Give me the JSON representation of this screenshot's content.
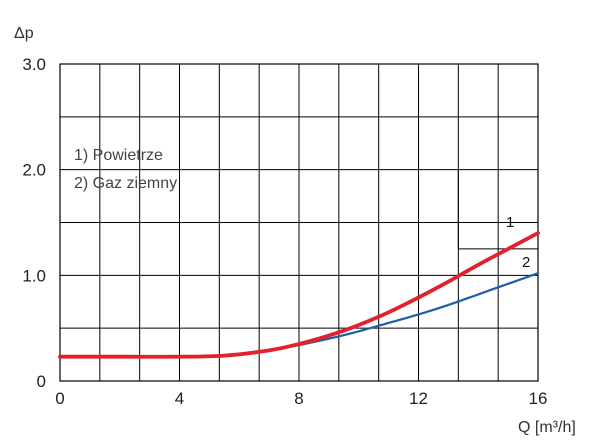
{
  "chart_data": {
    "type": "line",
    "title": "",
    "ylabel": "Δp",
    "xlabel": "Q [m³/h]",
    "xlim": [
      0,
      16
    ],
    "ylim": [
      0,
      3.0
    ],
    "x_ticks": [
      0,
      4,
      8,
      12,
      16
    ],
    "x_tick_labels": [
      "0",
      "4",
      "8",
      "12",
      "16"
    ],
    "y_ticks": [
      0,
      1.0,
      2.0,
      3.0
    ],
    "y_tick_labels": [
      "0",
      "1.0",
      "2.0",
      "3.0"
    ],
    "grid": true,
    "legend": {
      "placement": "top-left",
      "entries": [
        "1) Powietrze",
        "2) Gaz ziemny"
      ]
    },
    "series": [
      {
        "label": "1",
        "color": "#e3202b",
        "x": [
          0,
          2,
          4,
          5.5,
          7,
          8,
          9,
          10,
          11,
          12,
          13,
          14,
          15,
          16
        ],
        "y": [
          0.23,
          0.23,
          0.23,
          0.24,
          0.29,
          0.35,
          0.43,
          0.53,
          0.65,
          0.79,
          0.94,
          1.1,
          1.25,
          1.4
        ]
      },
      {
        "label": "2",
        "color": "#1f5fa8",
        "x": [
          7,
          8,
          9,
          10,
          11,
          12,
          13,
          14,
          15,
          16
        ],
        "y": [
          0.29,
          0.34,
          0.4,
          0.47,
          0.55,
          0.63,
          0.72,
          0.82,
          0.92,
          1.02
        ]
      }
    ]
  }
}
